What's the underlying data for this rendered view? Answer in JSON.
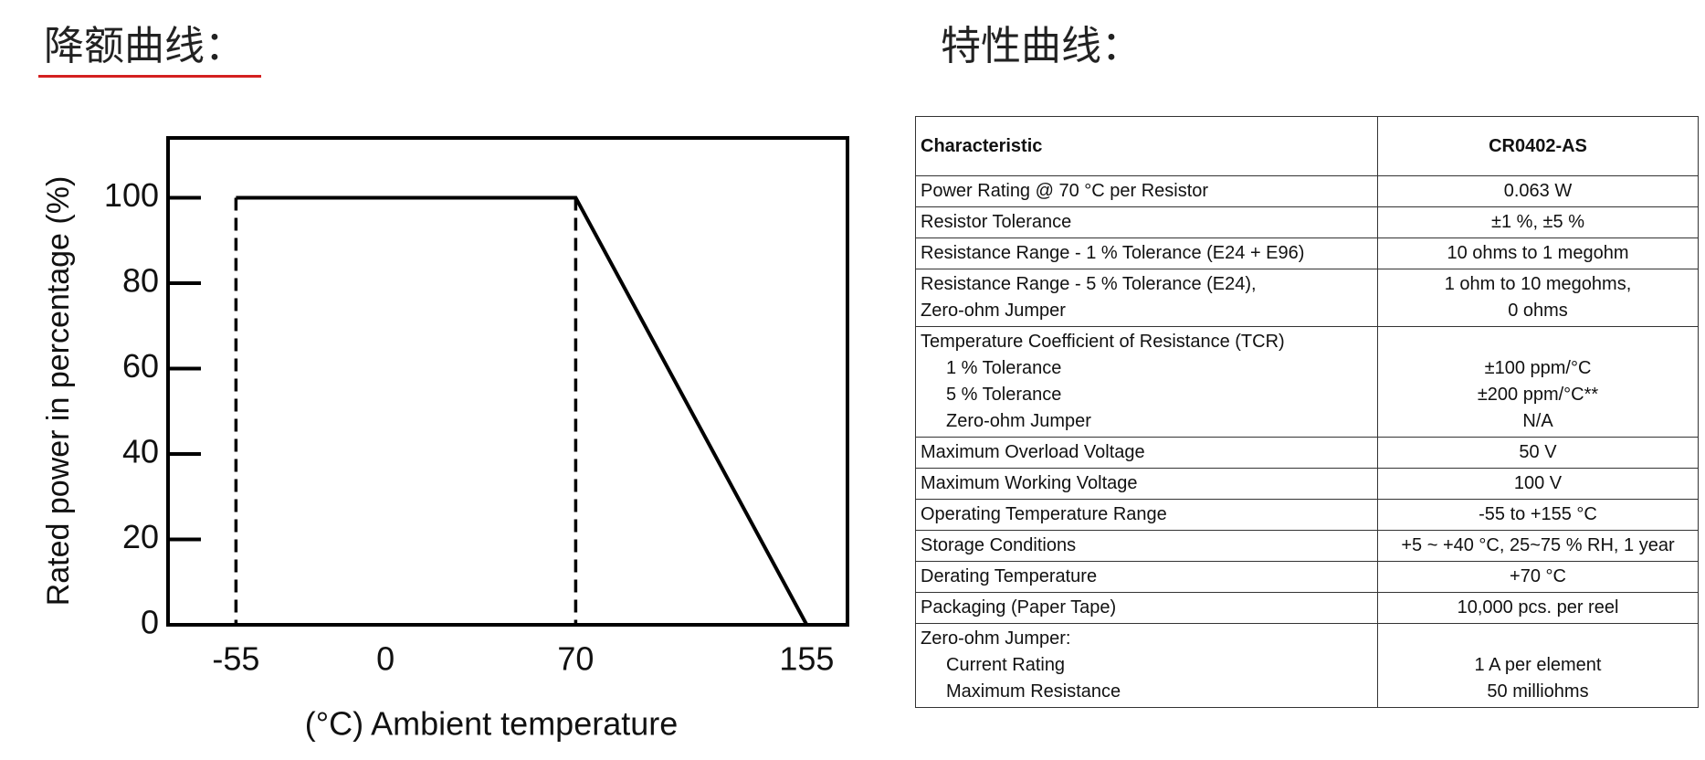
{
  "headings": {
    "left": "降额曲线：",
    "right": "特性曲线："
  },
  "chart_data": {
    "type": "line",
    "xlabel": "(°C) Ambient temperature",
    "ylabel": "Rated power in percentage (%)",
    "series": [
      {
        "x": [
          -55,
          70,
          155
        ],
        "values": [
          100,
          100,
          0
        ],
        "color": "#000000"
      }
    ],
    "xlim": [
      -80,
      170
    ],
    "xticks": [
      -55,
      0,
      70,
      155
    ],
    "ylim": [
      0,
      114
    ],
    "yticks": [
      0,
      20,
      40,
      60,
      80,
      100
    ],
    "grid": false
  },
  "table": {
    "header": [
      "Characteristic",
      "CR0402-AS"
    ],
    "rows": [
      [
        [
          "Power Rating @ 70 °C per Resistor"
        ],
        [
          "0.063 W"
        ]
      ],
      [
        [
          "Resistor Tolerance"
        ],
        [
          "±1 %, ±5 %"
        ]
      ],
      [
        [
          "Resistance Range - 1 % Tolerance (E24 + E96)"
        ],
        [
          "10 ohms to 1 megohm"
        ]
      ],
      [
        [
          "Resistance Range - 5 % Tolerance (E24),",
          "Zero-ohm Jumper"
        ],
        [
          "1 ohm to 10 megohms,",
          "0 ohms"
        ]
      ],
      [
        [
          "Temperature Coefficient of Resistance (TCR)",
          "1 % Tolerance",
          "5 % Tolerance",
          "Zero-ohm Jumper"
        ],
        [
          "±100 ppm/°C",
          "±200 ppm/°C**",
          "N/A"
        ]
      ],
      [
        [
          "Maximum Overload Voltage"
        ],
        [
          "50 V"
        ]
      ],
      [
        [
          "Maximum Working Voltage"
        ],
        [
          "100 V"
        ]
      ],
      [
        [
          "Operating Temperature Range"
        ],
        [
          "-55 to +155 °C"
        ]
      ],
      [
        [
          "Storage Conditions"
        ],
        [
          "+5 ~ +40 °C, 25~75 % RH, 1 year"
        ]
      ],
      [
        [
          "Derating Temperature"
        ],
        [
          "+70 °C"
        ]
      ],
      [
        [
          "Packaging (Paper Tape)"
        ],
        [
          "10,000 pcs. per reel"
        ]
      ],
      [
        [
          "Zero-ohm Jumper:",
          "Current Rating",
          "Maximum Resistance"
        ],
        [
          "1 A per element",
          "50 milliohms"
        ]
      ]
    ]
  }
}
